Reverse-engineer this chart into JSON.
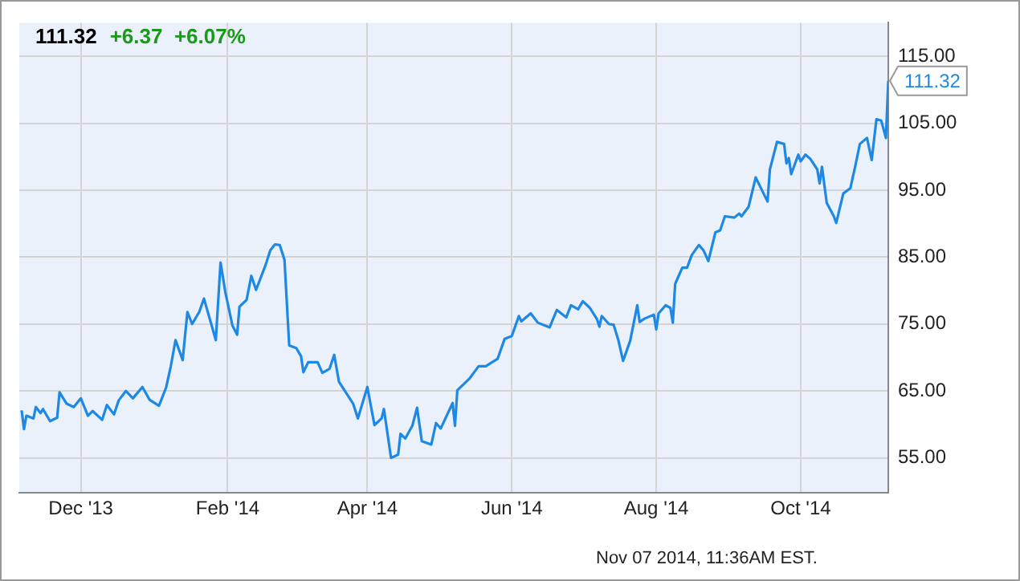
{
  "chart_data": {
    "type": "line",
    "title": "111.32",
    "subtitle": "+6.37  +6.07%",
    "annotations": [
      {
        "text": "111.32",
        "x": "2014-11-07",
        "y": 111.32
      },
      "Nov 07 2014, 11:36AM EST."
    ],
    "series": [
      {
        "color": "#1e88e5",
        "x": [
          "2013-11-06",
          "2013-11-07",
          "2013-11-08",
          "2013-11-11",
          "2013-11-12",
          "2013-11-14",
          "2013-11-15",
          "2013-11-18",
          "2013-11-21",
          "2013-11-22",
          "2013-11-25",
          "2013-11-28",
          "2013-12-01",
          "2013-12-04",
          "2013-12-06",
          "2013-12-10",
          "2013-12-12",
          "2013-12-15",
          "2013-12-17",
          "2013-12-20",
          "2013-12-23",
          "2013-12-27",
          "2013-12-30",
          "2014-01-03",
          "2014-01-06",
          "2014-01-08",
          "2014-01-10",
          "2014-01-13",
          "2014-01-15",
          "2014-01-17",
          "2014-01-20",
          "2014-01-22",
          "2014-01-27",
          "2014-01-29",
          "2014-01-31",
          "2014-02-03",
          "2014-02-05",
          "2014-02-06",
          "2014-02-09",
          "2014-02-11",
          "2014-02-13",
          "2014-02-17",
          "2014-02-19",
          "2014-02-21",
          "2014-02-23",
          "2014-02-25",
          "2014-02-27",
          "2014-03-02",
          "2014-03-04",
          "2014-03-05",
          "2014-03-07",
          "2014-03-11",
          "2014-03-13",
          "2014-03-16",
          "2014-03-18",
          "2014-03-20",
          "2014-03-26",
          "2014-03-28",
          "2014-04-01",
          "2014-04-04",
          "2014-04-07",
          "2014-04-08",
          "2014-04-11",
          "2014-04-14",
          "2014-04-15",
          "2014-04-17",
          "2014-04-20",
          "2014-04-22",
          "2014-04-24",
          "2014-04-28",
          "2014-04-30",
          "2014-05-02",
          "2014-05-07",
          "2014-05-08",
          "2014-05-09",
          "2014-05-14",
          "2014-05-18",
          "2014-05-21",
          "2014-05-26",
          "2014-05-29",
          "2014-06-01",
          "2014-06-04",
          "2014-06-05",
          "2014-06-09",
          "2014-06-12",
          "2014-06-17",
          "2014-06-20",
          "2014-06-24",
          "2014-06-26",
          "2014-06-29",
          "2014-07-01",
          "2014-07-04",
          "2014-07-07",
          "2014-07-08",
          "2014-07-09",
          "2014-07-12",
          "2014-07-14",
          "2014-07-16",
          "2014-07-18",
          "2014-07-21",
          "2014-07-24",
          "2014-07-25",
          "2014-07-27",
          "2014-07-31",
          "2014-08-01",
          "2014-08-02",
          "2014-08-05",
          "2014-08-07",
          "2014-08-08",
          "2014-08-09",
          "2014-08-12",
          "2014-08-14",
          "2014-08-16",
          "2014-08-19",
          "2014-08-21",
          "2014-08-23",
          "2014-08-26",
          "2014-08-28",
          "2014-08-30",
          "2014-09-03",
          "2014-09-05",
          "2014-09-06",
          "2014-09-09",
          "2014-09-12",
          "2014-09-17",
          "2014-09-18",
          "2014-09-21",
          "2014-09-24",
          "2014-09-25",
          "2014-09-26",
          "2014-09-27",
          "2014-09-30",
          "2014-10-01",
          "2014-10-03",
          "2014-10-05",
          "2014-10-08",
          "2014-10-09",
          "2014-10-10",
          "2014-10-12",
          "2014-10-15",
          "2014-10-16",
          "2014-10-19",
          "2014-10-22",
          "2014-10-24",
          "2014-10-26",
          "2014-10-29",
          "2014-10-31",
          "2014-11-02",
          "2014-11-04",
          "2014-11-06",
          "2014-11-07"
        ],
        "values": [
          62.1,
          59.3,
          61.3,
          60.9,
          62.6,
          61.7,
          62.3,
          60.5,
          61.0,
          64.8,
          63.1,
          62.6,
          63.9,
          61.3,
          62.0,
          60.7,
          62.9,
          61.5,
          63.6,
          65.0,
          63.9,
          65.6,
          63.7,
          62.8,
          65.5,
          68.7,
          72.6,
          69.6,
          76.8,
          75.0,
          76.8,
          78.8,
          72.6,
          84.2,
          79.8,
          74.8,
          73.4,
          77.6,
          78.6,
          82.2,
          80.1,
          83.8,
          86.0,
          86.9,
          86.8,
          84.6,
          71.8,
          71.4,
          70.2,
          67.8,
          69.3,
          69.3,
          67.7,
          68.3,
          70.4,
          66.4,
          63.1,
          60.9,
          65.6,
          59.9,
          60.9,
          62.3,
          55.0,
          55.5,
          58.6,
          57.9,
          59.8,
          62.5,
          57.5,
          57.0,
          60.2,
          59.4,
          63.2,
          59.8,
          65.1,
          66.8,
          68.7,
          68.7,
          69.8,
          72.8,
          73.2,
          76.2,
          75.4,
          76.6,
          75.2,
          74.5,
          77.1,
          76.0,
          77.8,
          77.2,
          78.4,
          77.4,
          75.7,
          74.6,
          76.2,
          75.0,
          74.9,
          72.6,
          69.5,
          72.5,
          77.8,
          75.3,
          75.8,
          76.4,
          74.2,
          76.6,
          77.8,
          77.4,
          75.2,
          81.0,
          83.4,
          83.4,
          85.3,
          86.8,
          86.0,
          84.4,
          88.7,
          89.0,
          91.1,
          90.9,
          91.5,
          91.1,
          92.5,
          96.9,
          93.3,
          98.1,
          102.2,
          101.9,
          99.0,
          99.8,
          97.4,
          100.3,
          99.3,
          100.3,
          99.7,
          98.1,
          96.0,
          98.5,
          93.1,
          91.1,
          90.1,
          94.5,
          95.3,
          98.5,
          101.9,
          102.8,
          99.5,
          105.6,
          105.4,
          102.8,
          111.32
        ]
      }
    ],
    "xlim": [
      "2013-11-05",
      "2014-11-07"
    ],
    "xticks": [
      {
        "value": "2013-12-01",
        "label": "Dec '13"
      },
      {
        "value": "2014-02-01",
        "label": "Feb '14"
      },
      {
        "value": "2014-04-01",
        "label": "Apr '14"
      },
      {
        "value": "2014-06-01",
        "label": "Jun '14"
      },
      {
        "value": "2014-08-01",
        "label": "Aug '14"
      },
      {
        "value": "2014-10-01",
        "label": "Oct '14"
      }
    ],
    "ylim": [
      49.8,
      120
    ],
    "yticks": [
      {
        "value": 55,
        "label": "55.00"
      },
      {
        "value": 65,
        "label": "65.00"
      },
      {
        "value": 75,
        "label": "75.00"
      },
      {
        "value": 85,
        "label": "85.00"
      },
      {
        "value": 95,
        "label": "95.00"
      },
      {
        "value": 105,
        "label": "105.00"
      },
      {
        "value": 115,
        "label": "115.00"
      }
    ],
    "grid": true,
    "legend": false,
    "marker": "none",
    "line_style": "solid"
  }
}
